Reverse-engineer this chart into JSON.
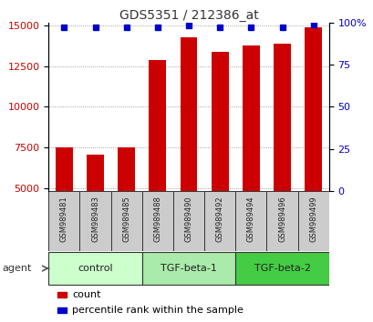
{
  "title": "GDS5351 / 212386_at",
  "samples": [
    "GSM989481",
    "GSM989483",
    "GSM989485",
    "GSM989488",
    "GSM989490",
    "GSM989492",
    "GSM989494",
    "GSM989496",
    "GSM989499"
  ],
  "counts": [
    7500,
    7050,
    7500,
    12900,
    14300,
    13400,
    13800,
    13900,
    14900
  ],
  "percentiles": [
    97,
    97,
    97,
    97,
    98,
    97,
    97,
    97,
    99
  ],
  "groups": [
    {
      "label": "control",
      "start": 0,
      "end": 3,
      "color": "#ccffcc"
    },
    {
      "label": "TGF-beta-1",
      "start": 3,
      "end": 6,
      "color": "#aaeaaa"
    },
    {
      "label": "TGF-beta-2",
      "start": 6,
      "end": 9,
      "color": "#44cc44"
    }
  ],
  "ylim_left": [
    4800,
    15200
  ],
  "ylim_right": [
    0,
    100
  ],
  "yticks_left": [
    5000,
    7500,
    10000,
    12500,
    15000
  ],
  "yticks_right": [
    0,
    25,
    50,
    75,
    100
  ],
  "bar_color": "#cc0000",
  "dot_color": "#0000cc",
  "bar_width": 0.55,
  "background_color": "#ffffff",
  "grid_color": "#888888",
  "sample_label_color": "#222222",
  "title_color": "#333333",
  "cell_bg": "#cccccc",
  "cell_border": "#333333"
}
